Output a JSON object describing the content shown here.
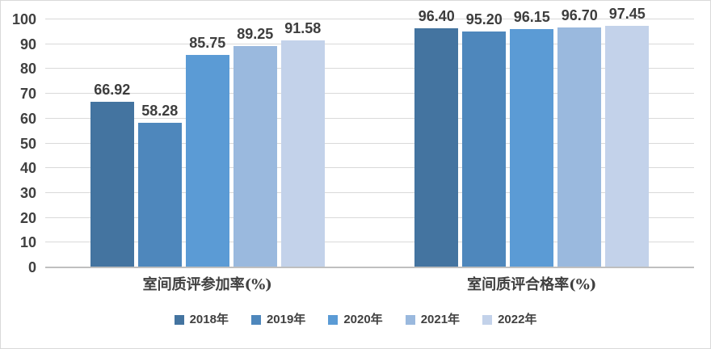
{
  "chart_data": {
    "type": "bar",
    "title": "",
    "xlabel": "",
    "ylabel": "",
    "categories": [
      "室间质评参加率(%)",
      "室间质评合格率(%)"
    ],
    "series": [
      {
        "name": "2018年",
        "color": "#4474A0",
        "values": [
          66.92,
          96.4
        ]
      },
      {
        "name": "2019年",
        "color": "#4E87BC",
        "values": [
          58.28,
          95.2
        ]
      },
      {
        "name": "2020年",
        "color": "#5B9BD5",
        "values": [
          85.75,
          96.15
        ]
      },
      {
        "name": "2021年",
        "color": "#9AB9DE",
        "values": [
          89.25,
          96.7
        ]
      },
      {
        "name": "2022年",
        "color": "#C3D2EA",
        "values": [
          91.58,
          97.45
        ]
      }
    ],
    "value_labels": [
      [
        "66.92",
        "58.28",
        "85.75",
        "89.25",
        "91.58"
      ],
      [
        "96.40",
        "95.20",
        "96.15",
        "96.70",
        "97.45"
      ]
    ],
    "ylim": [
      0,
      100
    ],
    "ytick_step": 10,
    "ytick_labels": [
      "0",
      "10",
      "20",
      "30",
      "40",
      "50",
      "60",
      "70",
      "80",
      "90",
      "100"
    ],
    "grid": true,
    "legend_position": "bottom"
  },
  "style": {
    "text_color": "#404040",
    "data_label_color": "#3D3D3D",
    "gridline_color": "#D9D9D9",
    "axis_line_color": "#BFBFBF",
    "frame_border_color": "#D9D9D9",
    "background": "#FFFFFF"
  }
}
